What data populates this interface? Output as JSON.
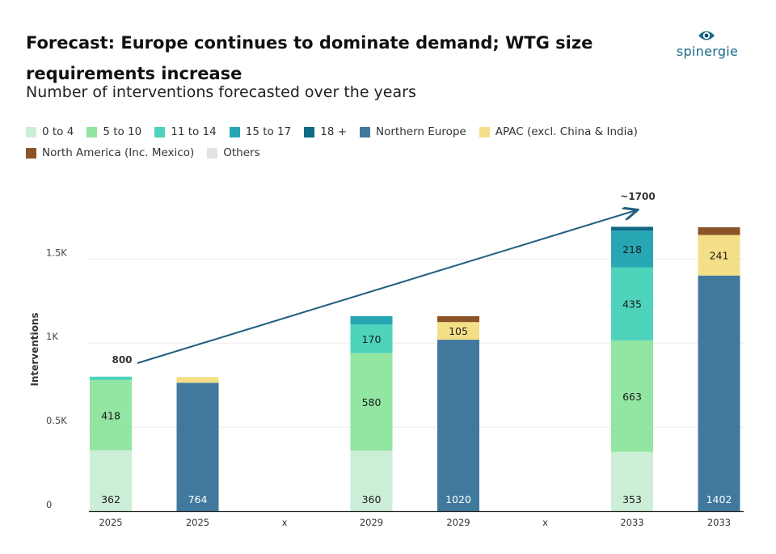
{
  "header": {
    "title": "Forecast: Europe continues to dominate demand; WTG size requirements increase",
    "subtitle": "Number of interventions forecasted over the years"
  },
  "logo": {
    "text": "spinergie",
    "color": "#1a6a8c"
  },
  "legend": [
    {
      "label": "0 to 4",
      "color": "#cdeed6"
    },
    {
      "label": "5 to 10",
      "color": "#92e6a2"
    },
    {
      "label": "11 to 14",
      "color": "#4dd4bb"
    },
    {
      "label": "15 to 17",
      "color": "#26a7b3"
    },
    {
      "label": "18 +",
      "color": "#0f6a85"
    },
    {
      "label": "Northern Europe",
      "color": "#41799e"
    },
    {
      "label": "APAC (excl. China & India)",
      "color": "#f5df86"
    },
    {
      "label": "North America (Inc. Mexico)",
      "color": "#8b5428"
    },
    {
      "label": "Others",
      "color": "#e3e3e3"
    }
  ],
  "chart_data": {
    "type": "bar",
    "stacked": true,
    "ylabel": "Interventions",
    "ylim": [
      0,
      1700
    ],
    "yticks": [
      {
        "value": 0,
        "label": "0"
      },
      {
        "value": 500,
        "label": "0.5K"
      },
      {
        "value": 1000,
        "label": "1K"
      },
      {
        "value": 1500,
        "label": "1.5K"
      }
    ],
    "grid": true,
    "legend_position": "top-left",
    "categories": [
      "2025",
      "2025",
      "x",
      "2029",
      "2029",
      "x",
      "2033",
      "2033"
    ],
    "bars": [
      {
        "category": "2025",
        "segments": [
          {
            "series": "0 to 4",
            "value": 362,
            "label": "362"
          },
          {
            "series": "5 to 10",
            "value": 418,
            "label": "418"
          },
          {
            "series": "11 to 14",
            "value": 20,
            "label": ""
          }
        ]
      },
      {
        "category": "2025",
        "segments": [
          {
            "series": "Northern Europe",
            "value": 764,
            "label": "764"
          },
          {
            "series": "APAC (excl. China & India)",
            "value": 34,
            "label": ""
          }
        ]
      },
      {
        "category": "x",
        "segments": []
      },
      {
        "category": "2029",
        "segments": [
          {
            "series": "0 to 4",
            "value": 360,
            "label": "360"
          },
          {
            "series": "5 to 10",
            "value": 580,
            "label": "580"
          },
          {
            "series": "11 to 14",
            "value": 170,
            "label": "170"
          },
          {
            "series": "15 to 17",
            "value": 50,
            "label": ""
          }
        ]
      },
      {
        "category": "2029",
        "segments": [
          {
            "series": "Northern Europe",
            "value": 1020,
            "label": "1020"
          },
          {
            "series": "APAC (excl. China & India)",
            "value": 105,
            "label": "105"
          },
          {
            "series": "North America (Inc. Mexico)",
            "value": 35,
            "label": ""
          }
        ]
      },
      {
        "category": "x",
        "segments": []
      },
      {
        "category": "2033",
        "segments": [
          {
            "series": "0 to 4",
            "value": 353,
            "label": "353"
          },
          {
            "series": "5 to 10",
            "value": 663,
            "label": "663"
          },
          {
            "series": "11 to 14",
            "value": 435,
            "label": "435"
          },
          {
            "series": "15 to 17",
            "value": 218,
            "label": "218"
          },
          {
            "series": "18 +",
            "value": 23,
            "label": ""
          }
        ]
      },
      {
        "category": "2033",
        "segments": [
          {
            "series": "Northern Europe",
            "value": 1402,
            "label": "1402"
          },
          {
            "series": "APAC (excl. China & India)",
            "value": 241,
            "label": "241"
          },
          {
            "series": "North America (Inc. Mexico)",
            "value": 46,
            "label": ""
          }
        ]
      }
    ],
    "annotations": [
      {
        "label": "800",
        "value": 800
      },
      {
        "label": "~1700",
        "value": 1700
      }
    ],
    "trend_arrow": {
      "from": 800,
      "to": 1700,
      "color": "#1f5f80"
    }
  }
}
